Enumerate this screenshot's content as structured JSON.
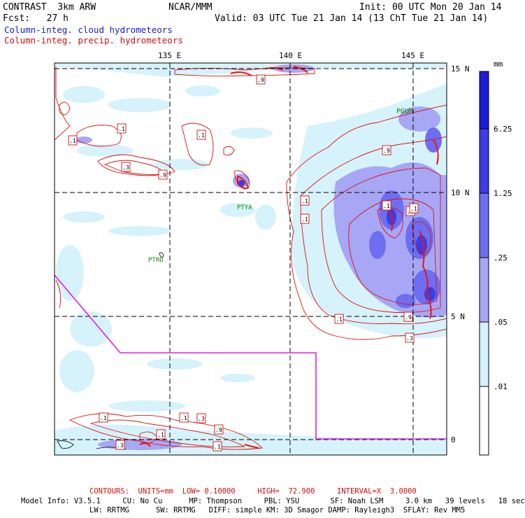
{
  "header": {
    "title_left": "CONTRAST  3km ARW",
    "fcst": "Fcst:   27 h",
    "center": "NCAR/MMM",
    "init": "Init: 00 UTC Mon 20 Jan 14",
    "valid": "Valid: 03 UTC Tue 21 Jan 14 (13 ChT Tue 21 Jan 14)"
  },
  "legend": {
    "cloud": "Column-integ. cloud hydrometeors",
    "precip": "Column-integ. precip. hydrometeors"
  },
  "axes": {
    "lon_labels": [
      "135 E",
      "140 E",
      "145 E"
    ],
    "lat_labels": [
      "15 N",
      "10 N",
      "5 N",
      "0"
    ]
  },
  "colorbar": {
    "unit": "mm",
    "levels": [
      "6.25",
      "1.25",
      ".25",
      ".05",
      ".01"
    ],
    "colors": [
      "#1d1dd6",
      "#3c3ce6",
      "#6e6ef0",
      "#a7a7f5",
      "#d6f2fa",
      "#ffffff"
    ]
  },
  "stations": [
    "PGUM",
    "PTYA",
    "PTRO"
  ],
  "contour_labels": [
    ".1",
    ".1",
    ".3",
    ".9",
    ".1",
    ".9",
    ".1",
    ".1",
    ".3",
    ".1",
    ".1",
    ".9",
    ".3",
    ".9",
    ".1",
    ".1",
    ".3",
    ".9",
    ".1",
    ".1",
    ".3",
    ".1"
  ],
  "footer": {
    "contours": "CONTOURS:  UNITS=mm  LOW= 0.10000     HIGH=  72.900     INTERVAL=X  3.0000",
    "model1": "Model Info: V3.5.1     CU: No Cu      MP: Thompson     PBL: YSU       SF: Noah LSM     3.0 km   39 levels   18 sec",
    "model2": "LW: RRTMG      SW: RRTMG   DIFF: simple KM: 3D Smagor DAMP: Rayleigh3  SFLAY: Rev MM5"
  }
}
